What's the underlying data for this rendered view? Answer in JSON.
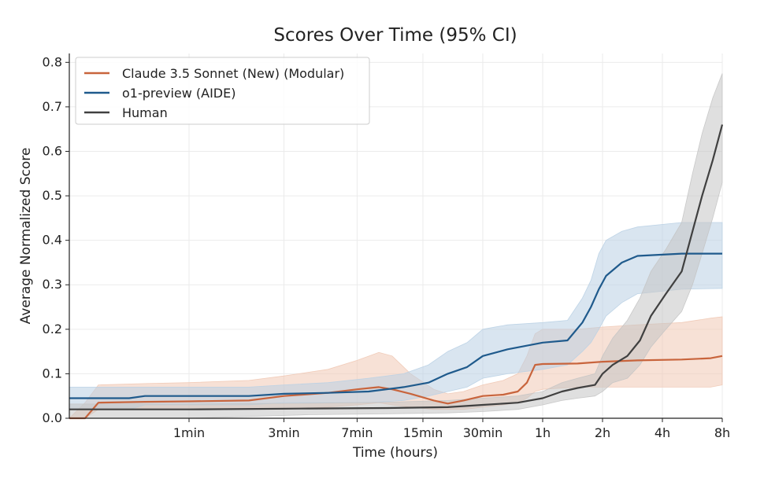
{
  "chart_data": {
    "type": "line",
    "title": "Scores Over Time (95% CI)",
    "xlabel": "Time (hours)",
    "ylabel": "Average Normalized Score",
    "x_scale": "log2-minutes",
    "xlim_minutes": [
      0.25,
      480
    ],
    "ylim": [
      0,
      0.82
    ],
    "x_ticks": [
      {
        "label": "1min",
        "minutes": 1
      },
      {
        "label": "3min",
        "minutes": 3
      },
      {
        "label": "7min",
        "minutes": 7
      },
      {
        "label": "15min",
        "minutes": 15
      },
      {
        "label": "30min",
        "minutes": 30
      },
      {
        "label": "1h",
        "minutes": 60
      },
      {
        "label": "2h",
        "minutes": 120
      },
      {
        "label": "4h",
        "minutes": 240
      },
      {
        "label": "8h",
        "minutes": 480
      }
    ],
    "y_ticks": [
      {
        "label": "0.0",
        "value": 0.0
      },
      {
        "label": "0.1",
        "value": 0.1
      },
      {
        "label": "0.2",
        "value": 0.2
      },
      {
        "label": "0.3",
        "value": 0.3
      },
      {
        "label": "0.4",
        "value": 0.4
      },
      {
        "label": "0.5",
        "value": 0.5
      },
      {
        "label": "0.6",
        "value": 0.6
      },
      {
        "label": "0.7",
        "value": 0.7
      },
      {
        "label": "0.8",
        "value": 0.8
      }
    ],
    "grid": true,
    "legend_position": "top-left",
    "series": [
      {
        "name": "Claude 3.5 Sonnet (New) (Modular)",
        "color": "#c8643c",
        "band_color": "#f0c8b4",
        "points": [
          [
            0.25,
            0.0,
            0.0,
            0.0
          ],
          [
            0.3,
            0.0,
            0.0,
            0.035
          ],
          [
            0.35,
            0.035,
            0.02,
            0.075
          ],
          [
            0.6,
            0.037,
            0.02,
            0.078
          ],
          [
            1.0,
            0.038,
            0.02,
            0.08
          ],
          [
            2.0,
            0.04,
            0.02,
            0.085
          ],
          [
            3.0,
            0.05,
            0.02,
            0.095
          ],
          [
            5.0,
            0.057,
            0.025,
            0.11
          ],
          [
            7.0,
            0.065,
            0.03,
            0.13
          ],
          [
            9.0,
            0.07,
            0.035,
            0.148
          ],
          [
            10.5,
            0.065,
            0.03,
            0.14
          ],
          [
            13.0,
            0.055,
            0.025,
            0.1
          ],
          [
            17.0,
            0.04,
            0.02,
            0.065
          ],
          [
            20.0,
            0.033,
            0.02,
            0.055
          ],
          [
            24.0,
            0.04,
            0.02,
            0.06
          ],
          [
            30.0,
            0.05,
            0.025,
            0.075
          ],
          [
            38.0,
            0.053,
            0.03,
            0.085
          ],
          [
            45.0,
            0.06,
            0.035,
            0.1
          ],
          [
            50.0,
            0.08,
            0.045,
            0.14
          ],
          [
            55.0,
            0.12,
            0.06,
            0.19
          ],
          [
            60.0,
            0.122,
            0.065,
            0.2
          ],
          [
            90.0,
            0.123,
            0.07,
            0.2
          ],
          [
            120.0,
            0.127,
            0.07,
            0.205
          ],
          [
            180.0,
            0.13,
            0.07,
            0.21
          ],
          [
            300.0,
            0.132,
            0.07,
            0.215
          ],
          [
            420.0,
            0.135,
            0.07,
            0.225
          ],
          [
            480.0,
            0.14,
            0.075,
            0.228
          ]
        ]
      },
      {
        "name": "o1-preview (AIDE)",
        "color": "#1f5a8c",
        "band_color": "#b9d0e4",
        "points": [
          [
            0.25,
            0.045,
            0.02,
            0.07
          ],
          [
            0.5,
            0.045,
            0.02,
            0.07
          ],
          [
            0.6,
            0.05,
            0.03,
            0.07
          ],
          [
            1.0,
            0.05,
            0.03,
            0.07
          ],
          [
            2.0,
            0.05,
            0.03,
            0.07
          ],
          [
            3.0,
            0.055,
            0.035,
            0.075
          ],
          [
            5.0,
            0.057,
            0.035,
            0.08
          ],
          [
            8.0,
            0.06,
            0.035,
            0.09
          ],
          [
            12.0,
            0.07,
            0.04,
            0.1
          ],
          [
            16.0,
            0.08,
            0.05,
            0.12
          ],
          [
            20.0,
            0.1,
            0.06,
            0.15
          ],
          [
            25.0,
            0.115,
            0.07,
            0.17
          ],
          [
            30.0,
            0.14,
            0.09,
            0.2
          ],
          [
            40.0,
            0.155,
            0.1,
            0.21
          ],
          [
            60.0,
            0.17,
            0.11,
            0.215
          ],
          [
            80.0,
            0.175,
            0.12,
            0.22
          ],
          [
            95.0,
            0.215,
            0.15,
            0.27
          ],
          [
            105.0,
            0.25,
            0.17,
            0.31
          ],
          [
            115.0,
            0.29,
            0.2,
            0.37
          ],
          [
            125.0,
            0.32,
            0.23,
            0.4
          ],
          [
            150.0,
            0.35,
            0.26,
            0.42
          ],
          [
            180.0,
            0.365,
            0.28,
            0.43
          ],
          [
            300.0,
            0.37,
            0.29,
            0.44
          ],
          [
            480.0,
            0.37,
            0.292,
            0.44
          ]
        ]
      },
      {
        "name": "Human",
        "color": "#404040",
        "band_color": "#c4c4c4",
        "points": [
          [
            0.25,
            0.02,
            0.0,
            0.032
          ],
          [
            1.0,
            0.02,
            0.0,
            0.032
          ],
          [
            4.0,
            0.022,
            0.008,
            0.034
          ],
          [
            10.0,
            0.023,
            0.01,
            0.036
          ],
          [
            20.0,
            0.025,
            0.012,
            0.04
          ],
          [
            30.0,
            0.03,
            0.015,
            0.045
          ],
          [
            45.0,
            0.035,
            0.02,
            0.05
          ],
          [
            60.0,
            0.045,
            0.03,
            0.06
          ],
          [
            75.0,
            0.06,
            0.04,
            0.08
          ],
          [
            90.0,
            0.068,
            0.045,
            0.09
          ],
          [
            110.0,
            0.075,
            0.05,
            0.1
          ],
          [
            120.0,
            0.1,
            0.06,
            0.14
          ],
          [
            135.0,
            0.12,
            0.08,
            0.18
          ],
          [
            160.0,
            0.14,
            0.09,
            0.22
          ],
          [
            185.0,
            0.175,
            0.12,
            0.27
          ],
          [
            210.0,
            0.23,
            0.16,
            0.33
          ],
          [
            250.0,
            0.28,
            0.2,
            0.38
          ],
          [
            300.0,
            0.33,
            0.24,
            0.44
          ],
          [
            340.0,
            0.42,
            0.3,
            0.55
          ],
          [
            380.0,
            0.5,
            0.37,
            0.64
          ],
          [
            430.0,
            0.58,
            0.45,
            0.72
          ],
          [
            480.0,
            0.66,
            0.53,
            0.775
          ]
        ]
      }
    ]
  }
}
